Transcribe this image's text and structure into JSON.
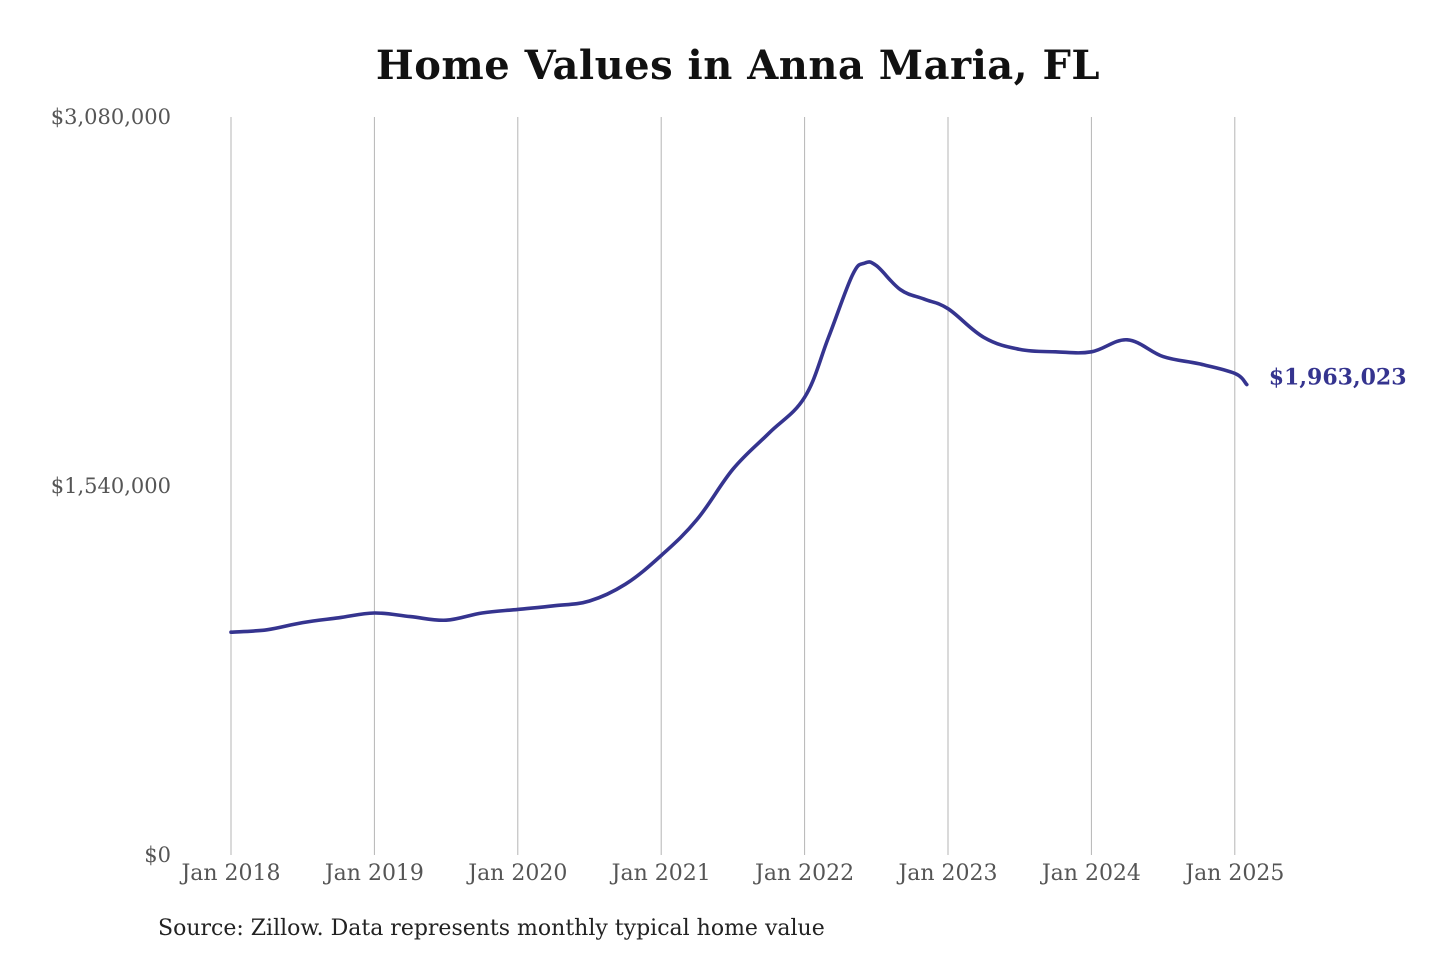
{
  "chart_data": {
    "type": "line",
    "title": "Home Values in Anna Maria, FL",
    "source": "Source: Zillow. Data represents monthly typical home value",
    "xlabel": "",
    "ylabel": "",
    "ylim": [
      0,
      3080000
    ],
    "y_ticks": [
      {
        "value": 0,
        "label": "$0"
      },
      {
        "value": 1540000,
        "label": "$1,540,000"
      },
      {
        "value": 3080000,
        "label": "$3,080,000"
      }
    ],
    "x_ticks": [
      {
        "value": "2018-01",
        "label": "Jan 2018"
      },
      {
        "value": "2019-01",
        "label": "Jan 2019"
      },
      {
        "value": "2020-01",
        "label": "Jan 2020"
      },
      {
        "value": "2021-01",
        "label": "Jan 2021"
      },
      {
        "value": "2022-01",
        "label": "Jan 2022"
      },
      {
        "value": "2023-01",
        "label": "Jan 2023"
      },
      {
        "value": "2024-01",
        "label": "Jan 2024"
      },
      {
        "value": "2025-01",
        "label": "Jan 2025"
      }
    ],
    "grid": "vertical",
    "end_label": "$1,963,023",
    "line_color": "#35348f",
    "series": [
      {
        "x": [
          "2018-01",
          "2018-04",
          "2018-07",
          "2018-10",
          "2019-01",
          "2019-04",
          "2019-07",
          "2019-10",
          "2020-01",
          "2020-04",
          "2020-07",
          "2020-10",
          "2021-01",
          "2021-04",
          "2021-07",
          "2021-10",
          "2022-01",
          "2022-03",
          "2022-05",
          "2022-06",
          "2022-07",
          "2022-09",
          "2022-11",
          "2023-01",
          "2023-04",
          "2023-07",
          "2023-10",
          "2024-01",
          "2024-04",
          "2024-07",
          "2024-10",
          "2025-01",
          "2025-02"
        ],
        "values": [
          930000,
          940000,
          970000,
          990000,
          1010000,
          995000,
          980000,
          1010000,
          1025000,
          1040000,
          1060000,
          1130000,
          1250000,
          1400000,
          1610000,
          1760000,
          1910000,
          2160000,
          2420000,
          2470000,
          2460000,
          2360000,
          2320000,
          2280000,
          2160000,
          2110000,
          2100000,
          2100000,
          2150000,
          2080000,
          2050000,
          2010000,
          1963023
        ]
      }
    ]
  }
}
